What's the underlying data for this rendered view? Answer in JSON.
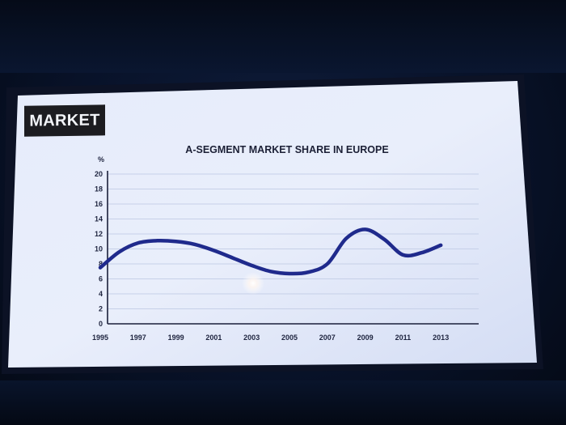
{
  "section_tag": "MARKET",
  "chart_data": {
    "type": "line",
    "title": "A-SEGMENT MARKET SHARE IN EUROPE",
    "ylabel": "%",
    "xlabel": "",
    "ylim": [
      0,
      20
    ],
    "yticks": [
      0,
      2,
      4,
      6,
      8,
      10,
      12,
      14,
      16,
      18,
      20
    ],
    "xlim": [
      1995,
      2014
    ],
    "xticks": [
      1995,
      1997,
      1999,
      2001,
      2003,
      2005,
      2007,
      2009,
      2011,
      2013
    ],
    "grid": true,
    "series": [
      {
        "x": [
          1995,
          1996,
          1997,
          1998,
          1999,
          2000,
          2001,
          2002,
          2003,
          2004,
          2005,
          2006,
          2007,
          2008,
          2009,
          2010,
          2011,
          2012,
          2013
        ],
        "values": [
          7.5,
          9.6,
          10.8,
          11.1,
          11.0,
          10.6,
          9.8,
          8.8,
          7.8,
          7.0,
          6.7,
          6.9,
          8.0,
          11.4,
          12.6,
          11.3,
          9.2,
          9.5,
          10.5
        ]
      }
    ],
    "line_color": "#1f2a8c"
  }
}
